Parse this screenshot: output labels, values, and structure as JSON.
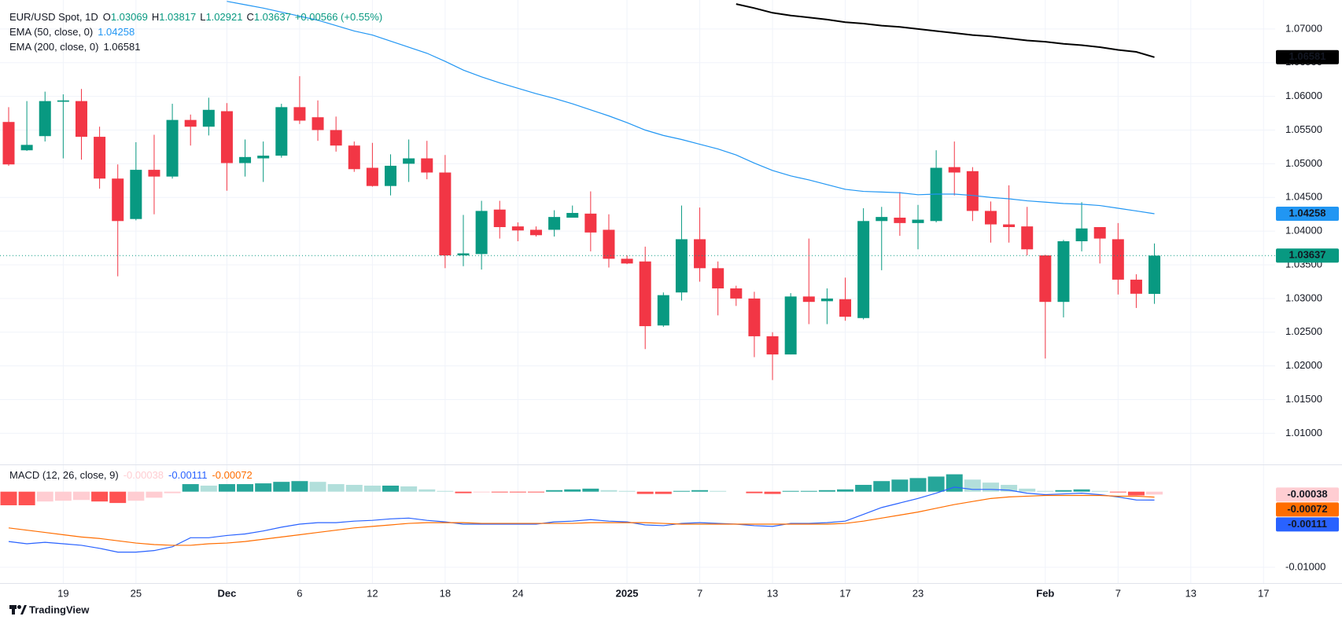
{
  "header": {
    "symbol": "EUR/USD Spot, 1D",
    "ohlc_labels": [
      "O",
      "H",
      "L",
      "C"
    ],
    "change": "+0.00566 (+0.55%)"
  },
  "chart_data": [
    {
      "type": "candlestick",
      "categories": [
        null,
        null,
        null,
        "19",
        null,
        null,
        null,
        "25",
        null,
        null,
        null,
        null,
        "Dec",
        null,
        null,
        null,
        "6",
        null,
        null,
        null,
        "12",
        null,
        null,
        null,
        "18",
        null,
        null,
        null,
        "24",
        null,
        null,
        null,
        null,
        null,
        "2025",
        null,
        null,
        null,
        "7",
        null,
        null,
        null,
        "13",
        null,
        null,
        null,
        "17",
        null,
        null,
        null,
        "23",
        null,
        null,
        null,
        null,
        null,
        null,
        "Feb",
        null,
        null,
        null,
        "7",
        null,
        null,
        null,
        "13",
        null,
        null,
        null,
        "17"
      ],
      "open": [
        1.0562,
        1.052,
        1.0541,
        1.0592,
        1.0593,
        1.054,
        1.0478,
        1.0418,
        1.0491,
        1.0481,
        1.0565,
        1.0555,
        1.0578,
        1.0501,
        1.0508,
        1.0512,
        1.0584,
        1.0569,
        1.055,
        1.0527,
        1.0494,
        1.0467,
        1.05,
        1.0508,
        1.0487,
        1.0364,
        1.0366,
        1.0432,
        1.0407,
        1.0402,
        1.0402,
        1.042,
        1.0426,
        1.0402,
        1.0359,
        1.0355,
        1.026,
        1.0309,
        1.0388,
        1.0345,
        1.0315,
        1.03,
        1.0244,
        1.0217,
        1.0303,
        1.0296,
        1.0299,
        1.0271,
        1.0415,
        1.042,
        1.0412,
        1.0415,
        1.0495,
        1.0489,
        1.043,
        1.041,
        1.0407,
        1.0364,
        1.0295,
        1.0385,
        1.0406,
        1.0388,
        1.0328,
        1.03069,
        null,
        null,
        null,
        null,
        null,
        null
      ],
      "high": [
        1.0584,
        1.0593,
        1.0607,
        1.0603,
        1.0611,
        1.0555,
        1.0499,
        1.0532,
        1.0543,
        1.0589,
        1.0573,
        1.0598,
        1.059,
        1.0536,
        1.0533,
        1.0589,
        1.063,
        1.0594,
        1.057,
        1.0533,
        1.0531,
        1.0514,
        1.0536,
        1.0534,
        1.0513,
        1.0424,
        1.0445,
        1.0445,
        1.0413,
        1.0407,
        1.0431,
        1.0438,
        1.0459,
        1.0425,
        1.0364,
        1.0377,
        1.0309,
        1.0438,
        1.0435,
        1.0355,
        1.0319,
        1.031,
        1.025,
        1.0308,
        1.0389,
        1.0315,
        1.0331,
        1.0434,
        1.0436,
        1.0458,
        1.0439,
        1.052,
        1.0533,
        1.0495,
        1.0444,
        1.0468,
        1.0436,
        1.0365,
        1.0387,
        1.0443,
        1.0406,
        1.0412,
        1.0336,
        1.03817,
        null,
        null,
        null,
        null,
        null,
        null
      ],
      "low": [
        1.0497,
        1.0519,
        1.0533,
        1.0508,
        1.0506,
        1.0463,
        1.0333,
        1.0416,
        1.0425,
        1.0478,
        1.0527,
        1.0542,
        1.046,
        1.0481,
        1.0473,
        1.0509,
        1.0559,
        1.0534,
        1.0518,
        1.0488,
        1.0466,
        1.0453,
        1.0473,
        1.0477,
        1.0345,
        1.0348,
        1.0343,
        1.0389,
        1.0385,
        1.0392,
        1.0392,
        1.042,
        1.037,
        1.0346,
        1.0351,
        1.0225,
        1.0258,
        1.0297,
        1.0325,
        1.0275,
        1.0289,
        1.0213,
        1.0179,
        1.0217,
        1.0262,
        1.0262,
        1.0267,
        1.0269,
        1.0342,
        1.0393,
        1.0373,
        1.0413,
        1.0453,
        1.0415,
        1.0383,
        1.0383,
        1.0364,
        1.0211,
        1.0272,
        1.037,
        1.0352,
        1.0306,
        1.0286,
        1.02921,
        null,
        null,
        null,
        null,
        null,
        null
      ],
      "close": [
        1.0499,
        1.0528,
        1.0593,
        1.0594,
        1.054,
        1.0478,
        1.0415,
        1.0491,
        1.0481,
        1.0565,
        1.0555,
        1.058,
        1.0501,
        1.051,
        1.0512,
        1.0584,
        1.0564,
        1.055,
        1.0527,
        1.0492,
        1.0467,
        1.0497,
        1.0508,
        1.0487,
        1.0364,
        1.0367,
        1.043,
        1.0406,
        1.0401,
        1.0394,
        1.0421,
        1.0427,
        1.0398,
        1.0359,
        1.0352,
        1.0259,
        1.0305,
        1.0388,
        1.0345,
        1.0315,
        1.03,
        1.0244,
        1.0217,
        1.0303,
        1.0295,
        1.03,
        1.0273,
        1.0415,
        1.0421,
        1.0412,
        1.0417,
        1.0494,
        1.0487,
        1.043,
        1.041,
        1.0406,
        1.0373,
        1.0295,
        1.0385,
        1.0404,
        1.0389,
        1.0328,
        1.03071,
        1.03637,
        null,
        null,
        null,
        null,
        null,
        null
      ],
      "up_color": "#089981",
      "down_color": "#f23645",
      "series": [
        {
          "name": "EMA (50, close, 0)",
          "color": "#2196f3",
          "values": [
            null,
            null,
            null,
            null,
            null,
            null,
            null,
            null,
            null,
            null,
            null,
            null,
            1.0741,
            1.0736,
            1.0731,
            1.0725,
            1.0719,
            1.0713,
            1.0705,
            1.0697,
            1.0691,
            1.0682,
            1.0673,
            1.0664,
            1.0652,
            1.0639,
            1.0629,
            1.062,
            1.0612,
            1.0604,
            1.0597,
            1.0589,
            1.058,
            1.0571,
            1.0561,
            1.055,
            1.0542,
            1.0536,
            1.0529,
            1.0522,
            1.0513,
            1.0501,
            1.049,
            1.0482,
            1.0476,
            1.0469,
            1.0462,
            1.0459,
            1.0458,
            1.0457,
            1.0454,
            1.0455,
            1.0455,
            1.0453,
            1.045,
            1.0448,
            1.0445,
            1.0443,
            1.0441,
            1.044,
            1.0438,
            1.0434,
            1.043,
            1.04258,
            null,
            null,
            null,
            null,
            null,
            null
          ]
        },
        {
          "name": "EMA (200, close, 0)",
          "color": "#000000",
          "values": [
            null,
            null,
            null,
            null,
            null,
            null,
            null,
            null,
            null,
            null,
            null,
            null,
            null,
            null,
            null,
            null,
            null,
            null,
            null,
            null,
            null,
            null,
            null,
            null,
            null,
            null,
            null,
            null,
            null,
            null,
            null,
            null,
            null,
            null,
            null,
            null,
            null,
            null,
            null,
            null,
            1.0737,
            1.0731,
            1.0724,
            1.072,
            1.0717,
            1.0714,
            1.071,
            1.0708,
            1.0705,
            1.0703,
            1.07,
            1.0697,
            1.0694,
            1.0691,
            1.0689,
            1.0686,
            1.0683,
            1.0681,
            1.0678,
            1.0676,
            1.0673,
            1.0669,
            1.0666,
            1.06581,
            null,
            null,
            null,
            null,
            null,
            null
          ]
        }
      ],
      "ylim": [
        1.0055,
        1.0743
      ],
      "yticks": [
        {
          "value": 1.01,
          "label": "1.01000"
        },
        {
          "value": 1.015,
          "label": "1.01500"
        },
        {
          "value": 1.02,
          "label": "1.02000"
        },
        {
          "value": 1.025,
          "label": "1.02500"
        },
        {
          "value": 1.03,
          "label": "1.03000"
        },
        {
          "value": 1.035,
          "label": "1.03500"
        },
        {
          "value": 1.04,
          "label": "1.04000"
        },
        {
          "value": 1.045,
          "label": "1.04500"
        },
        {
          "value": 1.05,
          "label": "1.05000"
        },
        {
          "value": 1.055,
          "label": "1.05500"
        },
        {
          "value": 1.06,
          "label": "1.06000"
        },
        {
          "value": 1.065,
          "label": "1.06500"
        },
        {
          "value": 1.07,
          "label": "1.07000"
        }
      ],
      "grid": true
    },
    {
      "type": "macd",
      "title": "MACD (12, 26, close, 9)",
      "histogram": {
        "colors": {
          "rising_positive": "#26a69a",
          "falling_positive": "#b2dfdb",
          "rising_negative": "#ffcdd2",
          "falling_negative": "#ff5252"
        },
        "values": [
          -0.0018,
          -0.0018,
          -0.0013,
          -0.0012,
          -0.0011,
          -0.0013,
          -0.0015,
          -0.0012,
          -0.0008,
          -0.0002,
          0.001,
          0.0008,
          0.001,
          0.001,
          0.0011,
          0.0013,
          0.0014,
          0.0013,
          0.001,
          0.0009,
          0.0008,
          0.0008,
          0.0007,
          0.0003,
          0.0001,
          -0.0002,
          -0.0001,
          -0.0001,
          -0.0001,
          -0.0001,
          0.0002,
          0.0003,
          0.0004,
          0.0002,
          0.0001,
          -0.0003,
          -0.0003,
          0.0001,
          0.0002,
          0.0001,
          0,
          -0.0002,
          -0.0003,
          0.0001,
          0.0001,
          0.0002,
          0.0003,
          0.0009,
          0.0014,
          0.0016,
          0.0018,
          0.002,
          0.0023,
          0.0016,
          0.0012,
          0.0009,
          0.0004,
          0.0001,
          0.0002,
          0.0003,
          0.0001,
          -0.0001,
          -0.0005,
          -0.00038
        ]
      },
      "macd": {
        "color": "#2962ff",
        "values": [
          -0.0066,
          -0.0069,
          -0.0067,
          -0.0069,
          -0.0071,
          -0.0075,
          -0.008,
          -0.008,
          -0.0078,
          -0.0073,
          -0.0061,
          -0.0061,
          -0.0058,
          -0.0056,
          -0.0052,
          -0.0047,
          -0.0043,
          -0.0041,
          -0.0041,
          -0.0039,
          -0.0038,
          -0.0036,
          -0.0035,
          -0.0038,
          -0.004,
          -0.0043,
          -0.0043,
          -0.0043,
          -0.0043,
          -0.0043,
          -0.004,
          -0.0039,
          -0.0037,
          -0.0039,
          -0.004,
          -0.0044,
          -0.0045,
          -0.0042,
          -0.0041,
          -0.0042,
          -0.0043,
          -0.0045,
          -0.0046,
          -0.0042,
          -0.0042,
          -0.0041,
          -0.0039,
          -0.003,
          -0.0021,
          -0.0015,
          -0.0009,
          -0.0002,
          0.0006,
          0.0003,
          0.0003,
          0.0002,
          -0.0002,
          -0.0004,
          -0.0003,
          -0.0002,
          -0.0004,
          -0.0007,
          -0.0011,
          -0.00111
        ]
      },
      "signal": {
        "color": "#ff6d00",
        "values": [
          -0.0048,
          -0.0051,
          -0.0054,
          -0.0057,
          -0.006,
          -0.0062,
          -0.0065,
          -0.0068,
          -0.007,
          -0.0071,
          -0.0071,
          -0.0069,
          -0.0068,
          -0.0066,
          -0.0063,
          -0.006,
          -0.0057,
          -0.0054,
          -0.0051,
          -0.0048,
          -0.0046,
          -0.0044,
          -0.0042,
          -0.0041,
          -0.0041,
          -0.0041,
          -0.0042,
          -0.0042,
          -0.0042,
          -0.0042,
          -0.0042,
          -0.0042,
          -0.0041,
          -0.0041,
          -0.0041,
          -0.0041,
          -0.0042,
          -0.0043,
          -0.0043,
          -0.0043,
          -0.0043,
          -0.0043,
          -0.0043,
          -0.0043,
          -0.0043,
          -0.0043,
          -0.0042,
          -0.0039,
          -0.0035,
          -0.0031,
          -0.0027,
          -0.0022,
          -0.0017,
          -0.0013,
          -0.0009,
          -0.0007,
          -0.0006,
          -0.0005,
          -0.0005,
          -0.0005,
          -0.0005,
          -0.0006,
          -0.0006,
          -0.00072
        ]
      },
      "ylim": [
        -0.0121,
        0.0034
      ],
      "yticks": [
        {
          "value": -0.01,
          "label": "-0.01000"
        }
      ]
    }
  ],
  "footer": {
    "brand": "TradingView"
  }
}
